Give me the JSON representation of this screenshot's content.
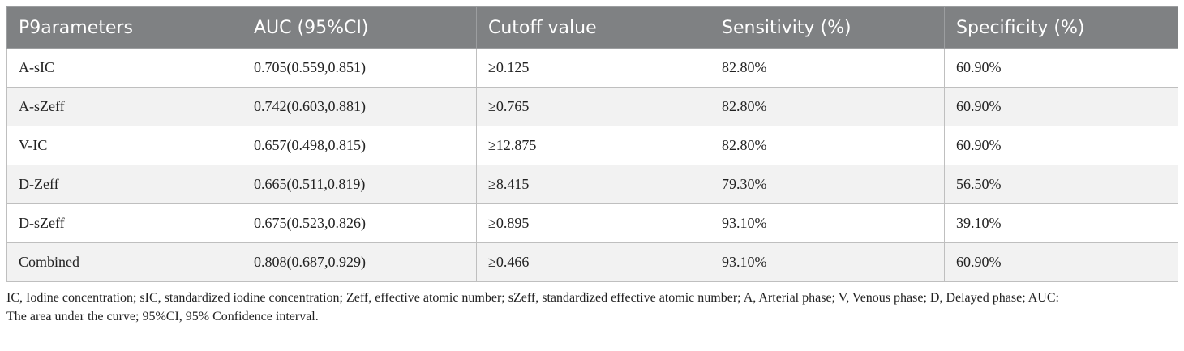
{
  "table": {
    "headers": [
      "P9arameters",
      "AUC (95%CI)",
      "Cutoff value",
      "Sensitivity (%)",
      "Specificity (%)"
    ],
    "rows": [
      [
        "A-sIC",
        "0.705(0.559,0.851)",
        "≥0.125",
        "82.80%",
        "60.90%"
      ],
      [
        "A-sZeff",
        "0.742(0.603,0.881)",
        "≥0.765",
        "82.80%",
        "60.90%"
      ],
      [
        "V-IC",
        "0.657(0.498,0.815)",
        "≥12.875",
        "82.80%",
        "60.90%"
      ],
      [
        "D-Zeff",
        "0.665(0.511,0.819)",
        "≥8.415",
        "79.30%",
        "56.50%"
      ],
      [
        "D-sZeff",
        "0.675(0.523,0.826)",
        "≥0.895",
        "93.10%",
        "39.10%"
      ],
      [
        "Combined",
        "0.808(0.687,0.929)",
        "≥0.466",
        "93.10%",
        "60.90%"
      ]
    ]
  },
  "footnote": {
    "line1": "IC, Iodine concentration; sIC, standardized iodine concentration; Zeff, effective atomic number; sZeff, standardized effective atomic number; A, Arterial phase; V, Venous phase; D, Delayed phase; AUC:",
    "line2": "The area under the curve; 95%CI, 95% Confidence interval."
  },
  "colors": {
    "header_bg": "#7f8183",
    "header_text": "#ffffff",
    "row_alt_bg": "#f2f2f2",
    "border": "#bfbfbf"
  }
}
